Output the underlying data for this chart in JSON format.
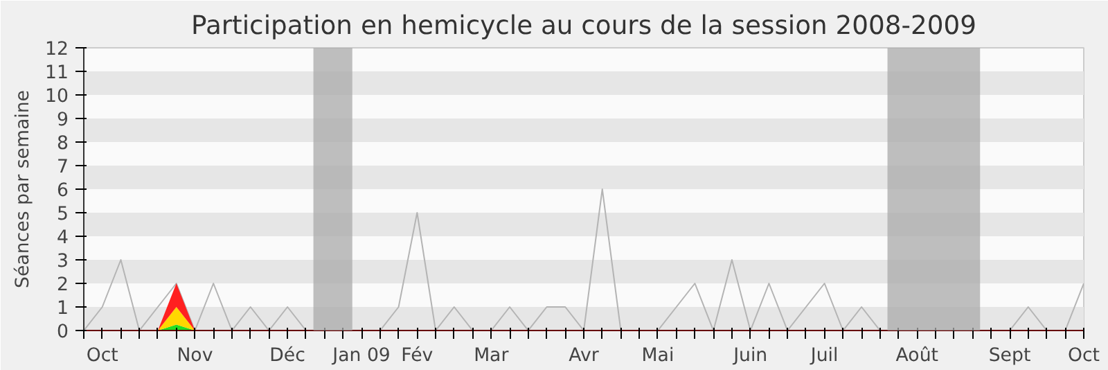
{
  "chart_data": {
    "type": "line",
    "title": "Participation en hemicycle au cours de la session 2008-2009",
    "ylabel": "Séances par semaine",
    "categories": [
      null,
      "Oct",
      null,
      null,
      null,
      null,
      "Nov",
      null,
      null,
      null,
      null,
      "Déc",
      null,
      null,
      null,
      "Jan 09",
      null,
      null,
      "Fév",
      null,
      null,
      null,
      "Mar",
      null,
      null,
      null,
      null,
      "Avr",
      null,
      null,
      null,
      "Mai",
      null,
      null,
      null,
      null,
      "Juin",
      null,
      null,
      null,
      "Juil",
      null,
      null,
      null,
      null,
      "Août",
      null,
      null,
      null,
      null,
      "Sept",
      null,
      null,
      null,
      "Oct"
    ],
    "series": [
      {
        "color": "#b4b4b4",
        "values": [
          0,
          1,
          3,
          0,
          1,
          2,
          0,
          2,
          0,
          1,
          0,
          1,
          0,
          null,
          null,
          null,
          0,
          1,
          5,
          0,
          1,
          0,
          0,
          1,
          0,
          1,
          1,
          0,
          6,
          0,
          0,
          0,
          1,
          2,
          0,
          3,
          0,
          2,
          0,
          1,
          2,
          0,
          1,
          0,
          null,
          null,
          null,
          null,
          null,
          null,
          0,
          1,
          0,
          0,
          2
        ]
      },
      {
        "type": "area",
        "color": "#22dd22",
        "values": [
          null,
          null,
          null,
          null,
          0,
          0.25,
          0,
          null,
          null,
          null,
          null,
          null,
          null,
          null,
          null,
          null,
          null,
          null,
          null,
          null,
          null,
          null,
          null,
          null,
          null,
          null,
          null,
          null,
          null,
          null,
          null,
          null,
          null,
          null,
          null,
          null,
          null,
          null,
          null,
          null,
          null,
          null,
          null,
          null,
          null,
          null,
          null,
          null,
          null,
          null,
          null,
          null,
          null,
          null,
          null
        ]
      },
      {
        "type": "area",
        "color": "#ffd700",
        "values": [
          null,
          null,
          null,
          null,
          0,
          0.75,
          0,
          null,
          null,
          null,
          null,
          null,
          null,
          null,
          null,
          null,
          null,
          null,
          null,
          null,
          null,
          null,
          null,
          null,
          null,
          null,
          null,
          null,
          null,
          null,
          null,
          null,
          null,
          null,
          null,
          null,
          null,
          null,
          null,
          null,
          null,
          null,
          null,
          null,
          null,
          null,
          null,
          null,
          null,
          null,
          null,
          null,
          null,
          null,
          null
        ]
      },
      {
        "type": "area",
        "color": "#ff2020",
        "values": [
          null,
          null,
          null,
          null,
          0,
          1,
          0,
          null,
          null,
          null,
          null,
          null,
          null,
          null,
          null,
          null,
          null,
          null,
          null,
          null,
          null,
          null,
          null,
          null,
          null,
          null,
          null,
          null,
          null,
          null,
          null,
          null,
          null,
          null,
          null,
          null,
          null,
          null,
          null,
          null,
          null,
          null,
          null,
          null,
          null,
          null,
          null,
          null,
          null,
          null,
          null,
          null,
          null,
          null,
          null
        ]
      }
    ],
    "stacked": true,
    "ylim": [
      0,
      12
    ],
    "yticks": [
      0,
      1,
      2,
      3,
      4,
      5,
      6,
      7,
      8,
      9,
      10,
      11,
      12
    ],
    "grid": false
  }
}
